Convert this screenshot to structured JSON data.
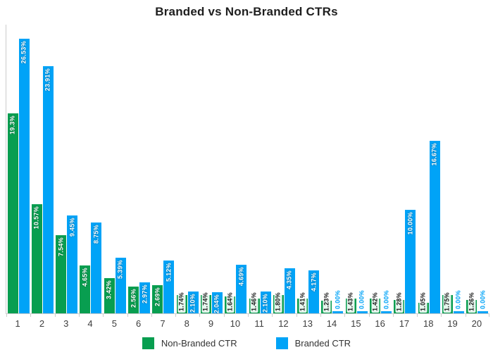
{
  "colors": {
    "non_branded": "#089E50",
    "branded": "#00A3F7",
    "axis": "#CCCCCC",
    "x_label_text": "#3D3D3D",
    "title_text": "#1E1E1E"
  },
  "chart_data": {
    "type": "bar",
    "title": "Branded vs Non-Branded CTRs",
    "xlabel": "",
    "ylabel": "",
    "categories": [
      "1",
      "2",
      "3",
      "4",
      "5",
      "6",
      "7",
      "8",
      "9",
      "10",
      "11",
      "12",
      "13",
      "14",
      "15",
      "16",
      "17",
      "18",
      "19",
      "20"
    ],
    "series": [
      {
        "name": "Non-Branded CTR",
        "color": "#089E50",
        "values": [
          19.3,
          10.57,
          7.54,
          4.65,
          3.42,
          2.56,
          2.69,
          1.74,
          1.74,
          1.64,
          1.46,
          1.8,
          1.41,
          1.23,
          1.43,
          1.42,
          1.28,
          1.05,
          1.75,
          1.26
        ],
        "labels": [
          "19.3%",
          "10.57%",
          "7.54%",
          "4.65%",
          "3.42%",
          "2.56%",
          "2.69%",
          "1.74%",
          "1.74%",
          "1.64%",
          "1.46%",
          "1.80%",
          "1.41%",
          "1.23%",
          "1.43%",
          "1.42%",
          "1.28%",
          "1.05%",
          "1.75%",
          "1.26%"
        ]
      },
      {
        "name": "Branded CTR",
        "color": "#00A3F7",
        "values": [
          26.53,
          23.91,
          9.45,
          8.75,
          5.39,
          2.97,
          5.12,
          2.1,
          2.04,
          4.69,
          2.1,
          4.35,
          4.17,
          0.0,
          0.0,
          0.0,
          10.0,
          16.67,
          0.0,
          0.0
        ],
        "labels": [
          "26.53%",
          "23.91%",
          "9.45%",
          "8.75%",
          "5.39%",
          "2.97%",
          "5.12%",
          "2.10%",
          "2.04%",
          "4.69%",
          "2.10%",
          "4.35%",
          "4.17%",
          "0.00%",
          "0.00%",
          "0.00%",
          "10.00%",
          "16.67%",
          "0.00%",
          "0.00%"
        ]
      }
    ],
    "ylim": [
      0,
      27.9
    ],
    "grid": false,
    "y_axis_labels_visible": false,
    "legend_position": "bottom",
    "bar_label_rotation": "vertical-bottom-to-top"
  }
}
